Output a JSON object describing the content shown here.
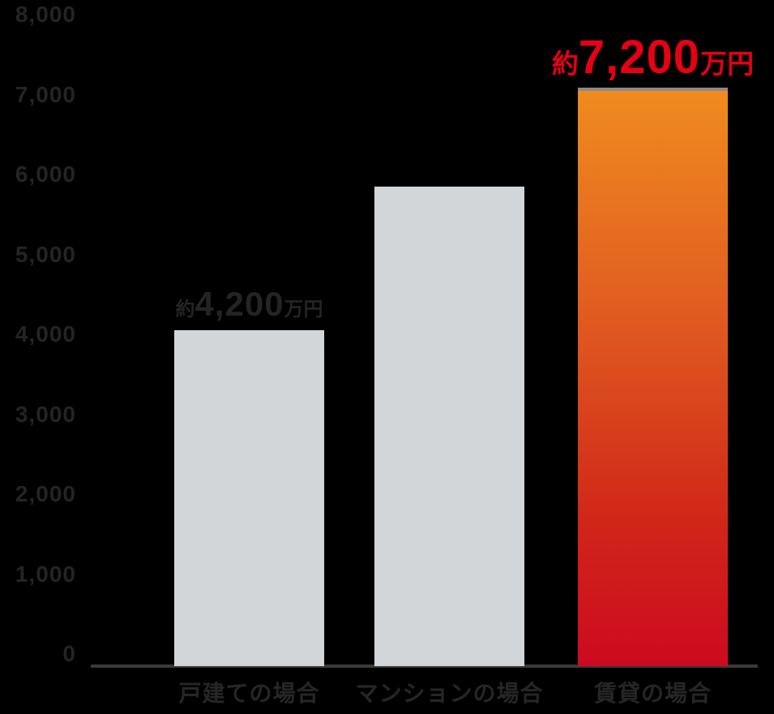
{
  "chart_data": {
    "type": "bar",
    "title": "",
    "categories": [
      "戸建ての場合",
      "マンションの場合",
      "賃貸の場合"
    ],
    "values": [
      4200,
      6000,
      7200
    ],
    "unit": "万円",
    "ylim": [
      0,
      8000
    ],
    "yticks": [
      8000,
      7000,
      6000,
      5000,
      4000,
      3000,
      2000,
      1000,
      0
    ],
    "ytick_labels": [
      "8,000",
      "7,000",
      "6,000",
      "5,000",
      "4,000",
      "3,000",
      "2,000",
      "1,000",
      "0"
    ],
    "grid": false,
    "legend": false,
    "annotations": [
      {
        "bar": 0,
        "prefix": "約",
        "value": "4,200",
        "suffix": "万円",
        "style": "small"
      },
      {
        "bar": 2,
        "prefix": "約",
        "value": "7,200",
        "suffix": "万円",
        "style": "big"
      }
    ],
    "colors": {
      "background": "#000000",
      "bar_default": "#d3d6d9",
      "bar_highlight_top": "#f08b1f",
      "bar_highlight_bottom": "#cd0a20",
      "value_label_dark": "#242426",
      "value_label_red": "#e60013",
      "tick_text": "#242426",
      "category_text": "#262626",
      "axis_line": "#3a3a3a"
    }
  }
}
